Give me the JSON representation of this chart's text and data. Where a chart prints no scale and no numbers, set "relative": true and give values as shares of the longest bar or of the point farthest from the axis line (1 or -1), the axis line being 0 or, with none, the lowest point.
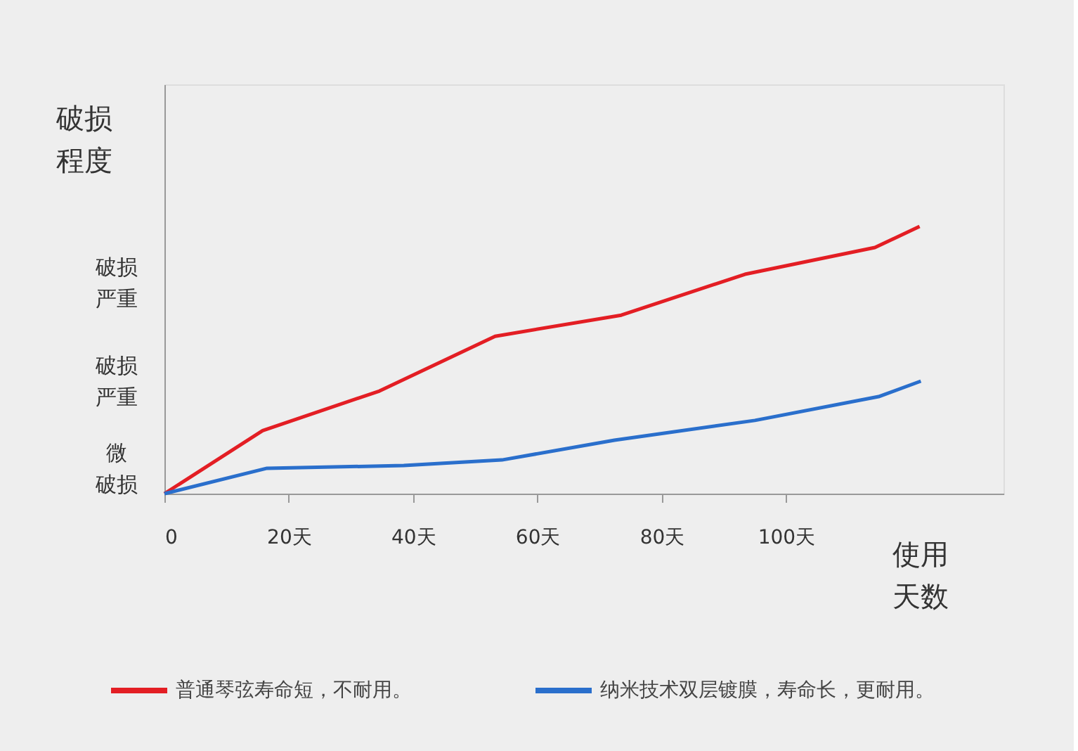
{
  "chart_data": {
    "type": "line",
    "relative": true,
    "ylabel": "破损程度",
    "xlabel": "使用天数",
    "annotations": [
      "破损严重",
      "破损严重",
      "微破损"
    ],
    "xlim": [
      0,
      135
    ],
    "xticks": [
      0,
      {
        "value": 20,
        "label": "20天"
      },
      {
        "value": 40,
        "label": "40天"
      },
      {
        "value": 60,
        "label": "60天"
      },
      {
        "value": 80,
        "label": "80天"
      },
      {
        "value": 100,
        "label": "100天"
      }
    ],
    "grid": false,
    "legend": "bottom",
    "line_style": "solid",
    "marker": "none",
    "series": [
      {
        "name": "普通琴弦寿命短，不耐用。",
        "color": "#e31e24",
        "x": [
          0,
          15.8,
          34.6,
          53.2,
          73.5,
          93.4,
          114.3,
          121.5
        ],
        "values": [
          0,
          0.236,
          0.384,
          0.589,
          0.668,
          0.821,
          0.921,
          1
        ]
      },
      {
        "name": "纳米技术双层镀膜，寿命长，更耐用。",
        "color": "#2a6fcc",
        "x": [
          0,
          16.5,
          38.5,
          54.3,
          72.4,
          95.0,
          114.9,
          121.7
        ],
        "values": [
          0,
          0.095,
          0.105,
          0.126,
          0.2,
          0.274,
          0.363,
          0.421
        ]
      }
    ]
  }
}
